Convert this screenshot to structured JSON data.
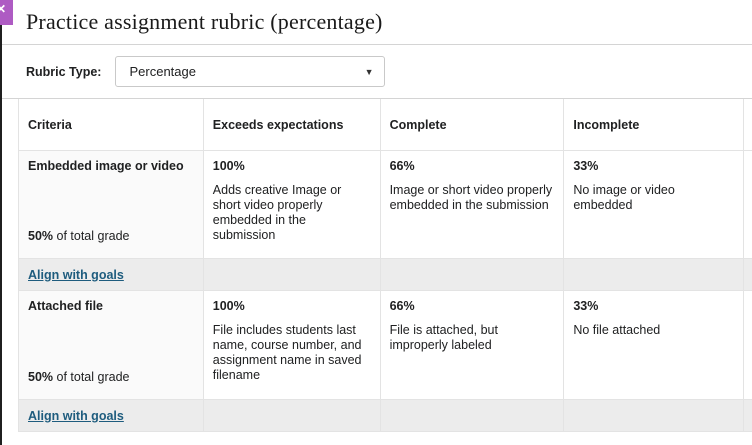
{
  "header": {
    "title": "Practice assignment rubric (percentage)",
    "close_glyph": "✕"
  },
  "rubric_type": {
    "label": "Rubric Type:",
    "selected": "Percentage",
    "caret_glyph": "▼"
  },
  "table": {
    "columns": [
      "Criteria",
      "Exceeds expectations",
      "Complete",
      "Incomplete"
    ],
    "align_link_label": "Align with goals",
    "rows": [
      {
        "criterion": "Embedded image or video",
        "grade_bold": "50%",
        "grade_rest": " of total grade",
        "levels": [
          {
            "percent": "100%",
            "description": "Adds creative Image or short video properly embedded in the submission"
          },
          {
            "percent": "66%",
            "description": "Image or short video properly embedded in the submission"
          },
          {
            "percent": "33%",
            "description": "No image or video embedded"
          }
        ]
      },
      {
        "criterion": "Attached file",
        "grade_bold": "50%",
        "grade_rest": " of total grade",
        "levels": [
          {
            "percent": "100%",
            "description": "File includes students last name, course number, and assignment name in saved filename"
          },
          {
            "percent": "66%",
            "description": "File is attached, but improperly labeled"
          },
          {
            "percent": "33%",
            "description": "No file attached"
          }
        ]
      }
    ]
  },
  "colors": {
    "accent_purple": "#ae5bc3",
    "link": "#1e5c7e",
    "row_gray": "#ececec",
    "criteria_bg": "#fafafa",
    "border_light": "#e3e3e3",
    "border_mid": "#d4d4d4"
  }
}
